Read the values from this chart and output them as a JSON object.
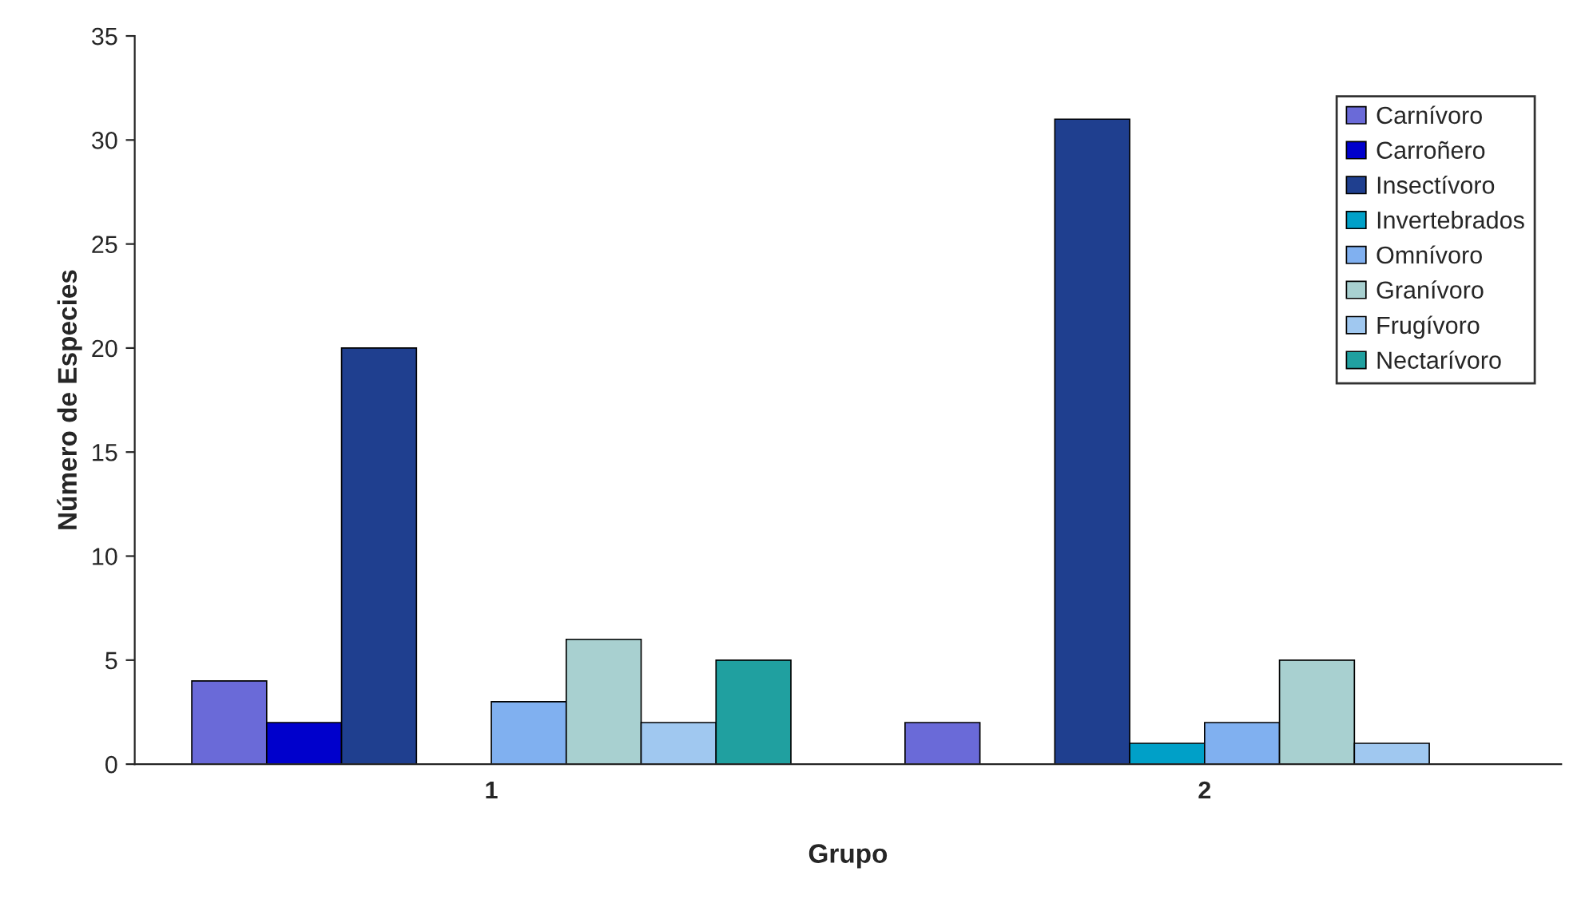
{
  "chart_data": {
    "type": "bar",
    "xlabel": "Grupo",
    "ylabel": "Número de Especies",
    "categories": [
      "1",
      "2"
    ],
    "series": [
      {
        "name": "Carnívoro",
        "color": "#6a6ad8",
        "values": [
          4,
          2
        ]
      },
      {
        "name": "Carroñero",
        "color": "#0000cc",
        "values": [
          2,
          null
        ]
      },
      {
        "name": "Insectívoro",
        "color": "#1f3f8f",
        "values": [
          20,
          31
        ]
      },
      {
        "name": "Invertebrados",
        "color": "#00a0c8",
        "values": [
          null,
          1
        ]
      },
      {
        "name": "Omnívoro",
        "color": "#80b0f0",
        "values": [
          3,
          2
        ]
      },
      {
        "name": "Granívoro",
        "color": "#a8d0d0",
        "values": [
          6,
          5
        ]
      },
      {
        "name": "Frugívoro",
        "color": "#a0c8f0",
        "values": [
          2,
          1
        ]
      },
      {
        "name": "Nectarívoro",
        "color": "#20a0a0",
        "values": [
          5,
          null
        ]
      }
    ],
    "ylim": [
      0,
      35
    ],
    "yticks": [
      0,
      5,
      10,
      15,
      20,
      25,
      30,
      35
    ],
    "grid": false,
    "legend": "right"
  }
}
